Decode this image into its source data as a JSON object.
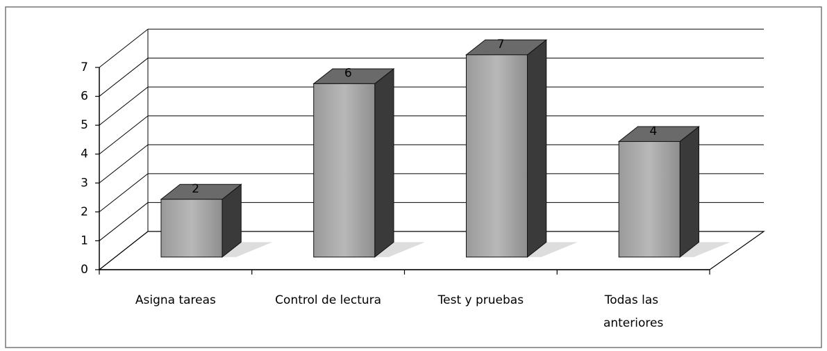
{
  "chart_data": {
    "type": "bar3d",
    "categories": [
      "Asigna tareas",
      "Control de lectura",
      "Test y pruebas",
      "Todas las anteriores"
    ],
    "values": [
      2,
      6,
      7,
      4
    ],
    "color": "#a9a9a9",
    "ylim": [
      0,
      7
    ],
    "yticks": [
      0,
      1,
      2,
      3,
      4,
      5,
      6,
      7
    ],
    "grid": true
  }
}
